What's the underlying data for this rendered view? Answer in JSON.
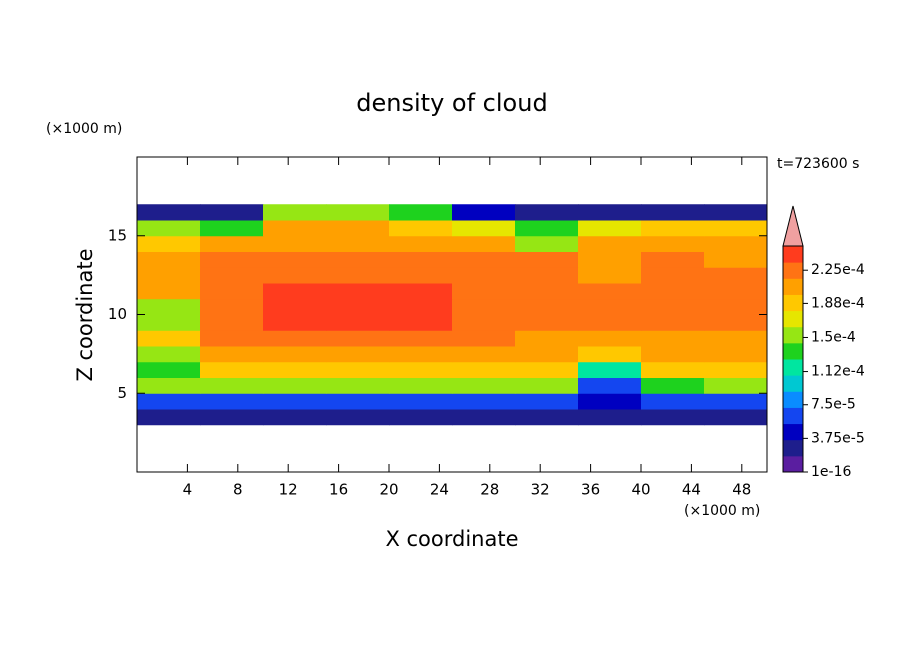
{
  "chart_data": {
    "type": "contour",
    "title": "density of cloud",
    "x_label": "X coordinate",
    "y_label": "Z coordinate",
    "x_unit": "(×1000 m)",
    "y_unit": "(×1000 m)",
    "time_label": "t=723600 s",
    "xlim": [
      0,
      50
    ],
    "ylim": [
      0,
      20
    ],
    "xticks": [
      4,
      8,
      12,
      16,
      20,
      24,
      28,
      32,
      36,
      40,
      44,
      48
    ],
    "yticks": [
      5,
      10,
      15
    ],
    "x": [
      2.5,
      7.5,
      12.5,
      17.5,
      22.5,
      27.5,
      32.5,
      37.5,
      42.5,
      47.5
    ],
    "y": [
      3.5,
      4.5,
      5.5,
      6.5,
      7.5,
      8.5,
      9.5,
      10.5,
      11.5,
      12.5,
      13.5,
      14.5,
      15.5,
      16.5
    ],
    "z": [
      [
        3e-05,
        3e-05,
        3e-05,
        3e-05,
        3e-05,
        3e-05,
        3e-05,
        3e-05,
        3e-05,
        3e-05
      ],
      [
        7e-05,
        7e-05,
        7e-05,
        7e-05,
        7e-05,
        7e-05,
        7e-05,
        5e-05,
        7e-05,
        7e-05
      ],
      [
        0.00015,
        0.00016,
        0.00016,
        0.00016,
        0.00016,
        0.00016,
        0.00015,
        6e-05,
        0.00014,
        0.00015
      ],
      [
        0.00013,
        0.000195,
        0.000195,
        0.000195,
        0.000195,
        0.000195,
        0.00019,
        0.00012,
        0.00019,
        0.00019
      ],
      [
        0.00016,
        0.00021,
        0.000215,
        0.000215,
        0.000215,
        0.00021,
        0.0002,
        0.00019,
        0.0002,
        0.0002
      ],
      [
        0.00019,
        0.00023,
        0.00023,
        0.00023,
        0.00023,
        0.000225,
        0.00021,
        0.00021,
        0.00021,
        0.00021
      ],
      [
        0.00015,
        0.00023,
        0.000235,
        0.000235,
        0.000235,
        0.00023,
        0.00022,
        0.00022,
        0.00023,
        0.00023
      ],
      [
        0.00016,
        0.00023,
        0.000235,
        0.000235,
        0.000235,
        0.00023,
        0.000225,
        0.00022,
        0.00023,
        0.00023
      ],
      [
        0.00021,
        0.00023,
        0.000235,
        0.000235,
        0.000235,
        0.00023,
        0.000225,
        0.00022,
        0.00023,
        0.00023
      ],
      [
        0.00021,
        0.00023,
        0.00023,
        0.00023,
        0.00023,
        0.00023,
        0.00022,
        0.00021,
        0.00022,
        0.00022
      ],
      [
        0.0002,
        0.000225,
        0.00023,
        0.00023,
        0.00023,
        0.000225,
        0.00022,
        0.00021,
        0.00022,
        0.00021
      ],
      [
        0.00019,
        0.0002,
        0.000215,
        0.000215,
        0.000215,
        0.00021,
        0.00016,
        0.000205,
        0.000205,
        0.000205
      ],
      [
        0.00016,
        0.00014,
        0.0002,
        0.0002,
        0.000195,
        0.00018,
        0.00013,
        0.00018,
        0.00019,
        0.00019
      ],
      [
        3e-05,
        3e-05,
        0.00015,
        0.00015,
        0.00014,
        5e-05,
        3e-05,
        3e-05,
        3e-05,
        3e-05
      ]
    ],
    "clim": [
      1e-16,
      0.000252
    ],
    "colorbar_ticks": [
      {
        "value": 1e-16,
        "label": "1e-16"
      },
      {
        "value": 3.75e-05,
        "label": "3.75e-5"
      },
      {
        "value": 7.5e-05,
        "label": "7.5e-5"
      },
      {
        "value": 0.000112,
        "label": "1.12e-4"
      },
      {
        "value": 0.00015,
        "label": "1.5e-4"
      },
      {
        "value": 0.000188,
        "label": "1.88e-4"
      },
      {
        "value": 0.000225,
        "label": "2.25e-4"
      }
    ],
    "colors": [
      "#5a1ea0",
      "#1e1e8c",
      "#0000c0",
      "#1446f0",
      "#0a8cff",
      "#00c8d2",
      "#00e6a0",
      "#1ed21e",
      "#96e614",
      "#e6e600",
      "#ffc800",
      "#ffa000",
      "#ff7314",
      "#ff3c1e"
    ],
    "extend_color": "#f0a0a0"
  }
}
